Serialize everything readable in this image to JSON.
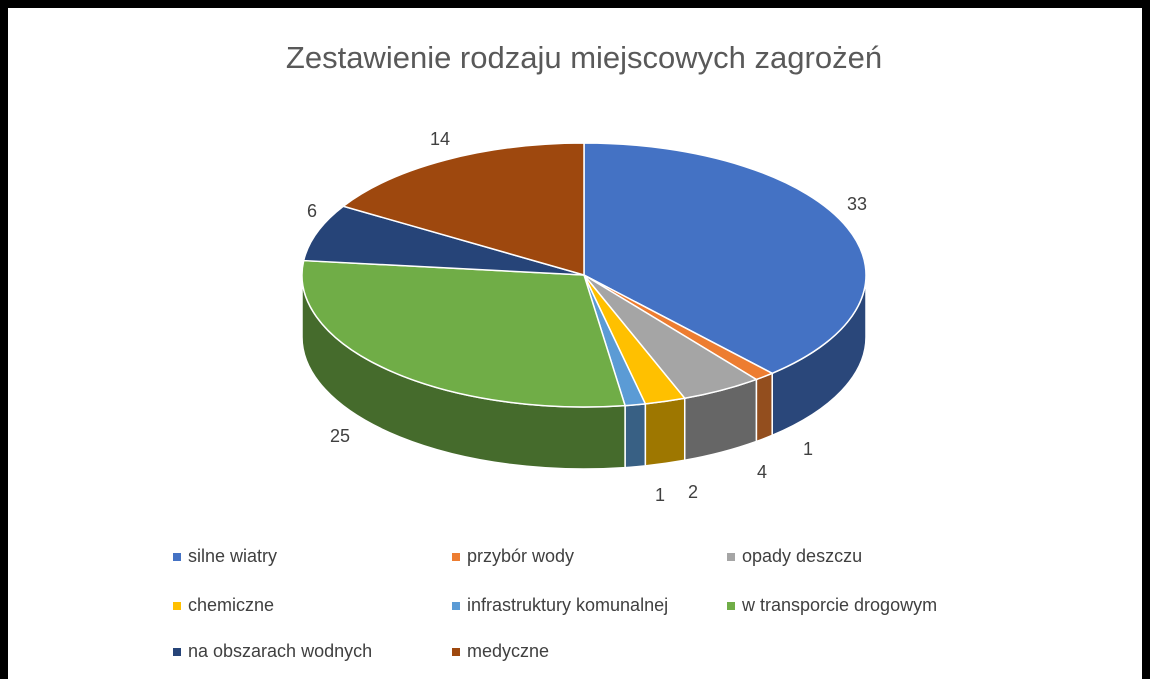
{
  "chart_data": {
    "type": "pie3d",
    "title": "Zestawienie rodzaju miejscowych zagrożeń",
    "categories": [
      "silne wiatry",
      "przybór wody",
      "opady deszczu",
      "chemiczne",
      "infrastruktury komunalnej",
      "w transporcie drogowym",
      "na obszarach wodnych",
      "medyczne"
    ],
    "values": [
      33,
      1,
      4,
      2,
      1,
      25,
      6,
      14
    ],
    "colors": [
      "#4472c4",
      "#ed7d31",
      "#a5a5a5",
      "#ffc000",
      "#5b9bd5",
      "#70ad47",
      "#264478",
      "#9e480e"
    ],
    "legend": "bottom"
  }
}
